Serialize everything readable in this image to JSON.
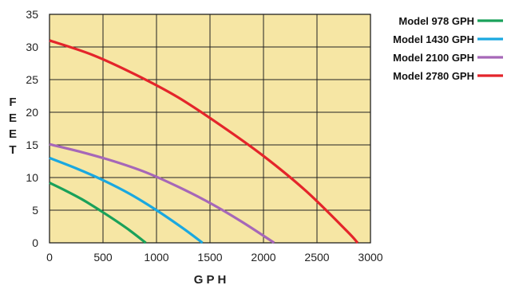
{
  "chart_data": {
    "type": "line",
    "xlabel": "G P H",
    "ylabel": "F E E T",
    "xlim": [
      0,
      3000
    ],
    "ylim": [
      0,
      35
    ],
    "x_ticks": [
      0,
      500,
      1000,
      1500,
      2000,
      2500,
      3000
    ],
    "y_ticks": [
      0,
      5,
      10,
      15,
      20,
      25,
      30,
      35
    ],
    "x_tick_labels": [
      "0",
      "500",
      "1000",
      "1500",
      "2000",
      "2500",
      "3000"
    ],
    "y_tick_labels": [
      "0",
      "5",
      "10",
      "15",
      "20",
      "25",
      "30",
      "35"
    ],
    "grid": true,
    "background": "#f6e6a4",
    "legend_position": "right",
    "series": [
      {
        "name": "Model 978 GPH",
        "color": "#1aa15a",
        "x": [
          0,
          150,
          300,
          450,
          600,
          750,
          900
        ],
        "y": [
          9.2,
          8.0,
          6.7,
          5.2,
          3.6,
          1.9,
          0
        ]
      },
      {
        "name": "Model 1430 GPH",
        "color": "#1aa8e0",
        "x": [
          0,
          250,
          500,
          750,
          1000,
          1250,
          1430
        ],
        "y": [
          13.0,
          11.4,
          9.6,
          7.5,
          5.0,
          2.2,
          0
        ]
      },
      {
        "name": "Model 2100 GPH",
        "color": "#a667b8",
        "x": [
          0,
          300,
          600,
          900,
          1200,
          1500,
          1800,
          2100
        ],
        "y": [
          15.1,
          13.9,
          12.5,
          10.8,
          8.6,
          6.1,
          3.2,
          0
        ]
      },
      {
        "name": "Model 2780 GPH",
        "color": "#e4252b",
        "x": [
          0,
          400,
          800,
          1200,
          1600,
          2000,
          2400,
          2780,
          2880
        ],
        "y": [
          31.0,
          28.8,
          25.8,
          22.3,
          18.0,
          13.3,
          7.9,
          1.8,
          0
        ]
      }
    ]
  }
}
